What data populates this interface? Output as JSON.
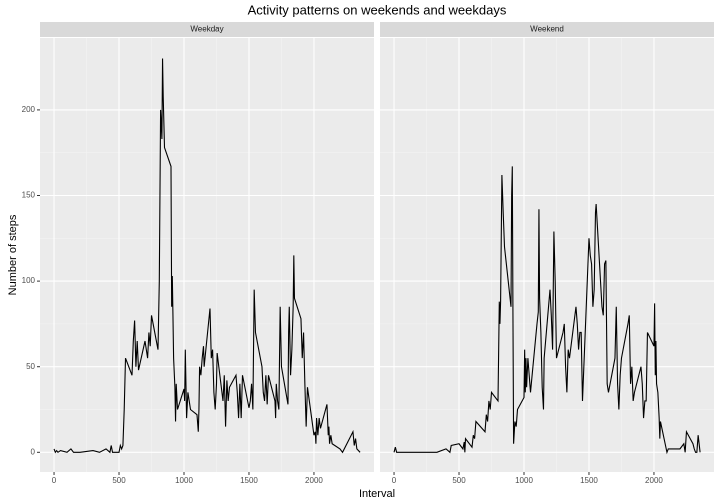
{
  "chart_data": {
    "type": "line",
    "title": "Activity patterns on weekends and weekdays",
    "x_label": "Interval",
    "y_label": "Number of steps",
    "color": "#000000",
    "grid": true,
    "xlim": [
      -108,
      2462
    ],
    "ylim": [
      -11.5,
      242
    ],
    "xticks": [
      0,
      500,
      1000,
      1500,
      2000
    ],
    "yticks": [
      0,
      50,
      100,
      150,
      200
    ],
    "panels": [
      {
        "label": "Weekday",
        "x": [
          0,
          10,
          20,
          30,
          50,
          100,
          130,
          150,
          200,
          300,
          350,
          400,
          430,
          440,
          450,
          500,
          510,
          520,
          530,
          540,
          550,
          600,
          610,
          620,
          630,
          640,
          650,
          700,
          720,
          730,
          740,
          750,
          800,
          810,
          820,
          830,
          835,
          840,
          850,
          900,
          905,
          910,
          915,
          920,
          930,
          935,
          940,
          950,
          1000,
          1005,
          1010,
          1015,
          1020,
          1030,
          1050,
          1100,
          1110,
          1115,
          1120,
          1130,
          1140,
          1150,
          1155,
          1200,
          1210,
          1220,
          1230,
          1240,
          1250,
          1255,
          1300,
          1310,
          1320,
          1330,
          1340,
          1350,
          1400,
          1410,
          1420,
          1430,
          1440,
          1450,
          1500,
          1510,
          1520,
          1530,
          1540,
          1550,
          1600,
          1610,
          1620,
          1630,
          1640,
          1650,
          1700,
          1705,
          1710,
          1720,
          1730,
          1740,
          1750,
          1800,
          1805,
          1810,
          1820,
          1830,
          1840,
          1845,
          1850,
          1900,
          1910,
          1920,
          1930,
          1940,
          1950,
          2000,
          2010,
          2015,
          2020,
          2030,
          2040,
          2050,
          2100,
          2110,
          2115,
          2120,
          2130,
          2140,
          2200,
          2220,
          2300,
          2310,
          2320,
          2330,
          2355
        ],
        "values": [
          2,
          0,
          1,
          0,
          1,
          0,
          2,
          0,
          0,
          1,
          0,
          2,
          0,
          4,
          0,
          0,
          4,
          2,
          4,
          25,
          55,
          45,
          65,
          77,
          50,
          65,
          48,
          65,
          55,
          70,
          62,
          80,
          60,
          100,
          200,
          183,
          230,
          208,
          178,
          167,
          85,
          103,
          80,
          55,
          38,
          18,
          40,
          25,
          37,
          30,
          60,
          40,
          20,
          35,
          25,
          22,
          12,
          25,
          50,
          45,
          55,
          62,
          50,
          84,
          55,
          60,
          35,
          25,
          40,
          58,
          30,
          45,
          15,
          42,
          30,
          38,
          45,
          35,
          20,
          40,
          20,
          45,
          26,
          30,
          40,
          25,
          95,
          70,
          50,
          35,
          30,
          45,
          28,
          45,
          30,
          20,
          40,
          30,
          25,
          85,
          50,
          28,
          70,
          85,
          45,
          60,
          85,
          115,
          90,
          78,
          55,
          70,
          40,
          15,
          38,
          10,
          12,
          5,
          20,
          10,
          20,
          14,
          28,
          10,
          15,
          5,
          10,
          5,
          2,
          0,
          12,
          4,
          8,
          2,
          0
        ]
      },
      {
        "label": "Weekend",
        "x": [
          0,
          10,
          20,
          200,
          300,
          330,
          400,
          430,
          440,
          500,
          530,
          540,
          545,
          550,
          600,
          610,
          620,
          630,
          700,
          710,
          720,
          730,
          740,
          750,
          800,
          810,
          815,
          820,
          830,
          840,
          850,
          900,
          905,
          910,
          915,
          920,
          930,
          940,
          945,
          950,
          1000,
          1005,
          1010,
          1015,
          1020,
          1030,
          1040,
          1050,
          1100,
          1110,
          1115,
          1120,
          1130,
          1140,
          1150,
          1155,
          1200,
          1210,
          1220,
          1230,
          1240,
          1250,
          1300,
          1310,
          1320,
          1330,
          1340,
          1350,
          1400,
          1410,
          1420,
          1430,
          1440,
          1450,
          1500,
          1510,
          1520,
          1530,
          1540,
          1550,
          1555,
          1600,
          1610,
          1620,
          1630,
          1640,
          1650,
          1700,
          1710,
          1720,
          1730,
          1740,
          1750,
          1800,
          1810,
          1820,
          1830,
          1840,
          1850,
          1900,
          1910,
          1920,
          1930,
          1940,
          1950,
          2000,
          2005,
          2010,
          2015,
          2020,
          2030,
          2040,
          2045,
          2050,
          2100,
          2110,
          2200,
          2230,
          2240,
          2250,
          2300,
          2310,
          2320,
          2330,
          2340,
          2355
        ],
        "values": [
          0,
          3,
          0,
          0,
          0,
          0,
          2,
          0,
          4,
          5,
          2,
          6,
          0,
          8,
          3,
          10,
          8,
          18,
          12,
          22,
          18,
          30,
          25,
          35,
          30,
          88,
          75,
          88,
          162,
          140,
          120,
          85,
          150,
          167,
          80,
          5,
          18,
          15,
          20,
          25,
          32,
          60,
          35,
          55,
          38,
          55,
          45,
          35,
          75,
          82,
          142,
          90,
          70,
          38,
          25,
          55,
          95,
          80,
          60,
          129,
          100,
          55,
          70,
          75,
          50,
          35,
          60,
          55,
          85,
          75,
          60,
          70,
          70,
          30,
          125,
          115,
          110,
          85,
          95,
          140,
          145,
          85,
          80,
          110,
          112,
          40,
          35,
          55,
          85,
          40,
          25,
          45,
          55,
          75,
          80,
          40,
          50,
          30,
          35,
          50,
          40,
          20,
          30,
          30,
          70,
          62,
          87,
          45,
          65,
          40,
          35,
          20,
          8,
          18,
          0,
          2,
          2,
          5,
          0,
          12,
          5,
          2,
          0,
          0,
          10,
          0
        ]
      }
    ]
  }
}
